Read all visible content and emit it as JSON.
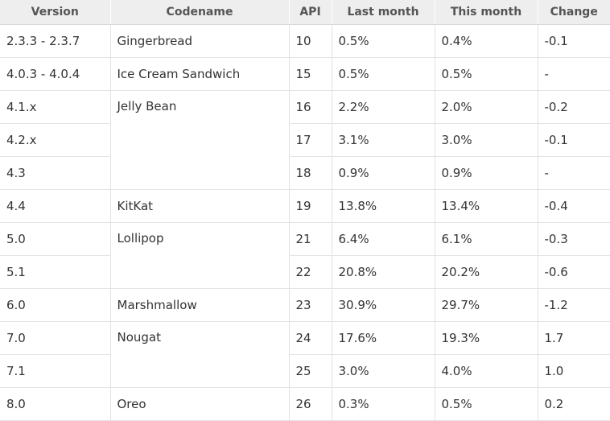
{
  "table": {
    "columns": [
      "Version",
      "Codename",
      "API",
      "Last month",
      "This month",
      "Change"
    ],
    "rows": [
      {
        "version": "2.3.3 - 2.3.7",
        "codename": "Gingerbread",
        "api": "10",
        "last_month": "0.5%",
        "this_month": "0.4%",
        "change": "-0.1"
      },
      {
        "version": "4.0.3 - 4.0.4",
        "codename": "Ice Cream Sandwich",
        "api": "15",
        "last_month": "0.5%",
        "this_month": "0.5%",
        "change": "-"
      },
      {
        "version": "4.1.x",
        "codename": "Jelly Bean",
        "api": "16",
        "last_month": "2.2%",
        "this_month": "2.0%",
        "change": "-0.2"
      },
      {
        "version": "4.2.x",
        "codename": "Jelly Bean",
        "api": "17",
        "last_month": "3.1%",
        "this_month": "3.0%",
        "change": "-0.1"
      },
      {
        "version": "4.3",
        "codename": "Jelly Bean",
        "api": "18",
        "last_month": "0.9%",
        "this_month": "0.9%",
        "change": "-"
      },
      {
        "version": "4.4",
        "codename": "KitKat",
        "api": "19",
        "last_month": "13.8%",
        "this_month": "13.4%",
        "change": "-0.4"
      },
      {
        "version": "5.0",
        "codename": "Lollipop",
        "api": "21",
        "last_month": "6.4%",
        "this_month": "6.1%",
        "change": "-0.3"
      },
      {
        "version": "5.1",
        "codename": "Lollipop",
        "api": "22",
        "last_month": "20.8%",
        "this_month": "20.2%",
        "change": "-0.6"
      },
      {
        "version": "6.0",
        "codename": "Marshmallow",
        "api": "23",
        "last_month": "30.9%",
        "this_month": "29.7%",
        "change": "-1.2"
      },
      {
        "version": "7.0",
        "codename": "Nougat",
        "api": "24",
        "last_month": "17.6%",
        "this_month": "19.3%",
        "change": "1.7"
      },
      {
        "version": "7.1",
        "codename": "Nougat",
        "api": "25",
        "last_month": "3.0%",
        "this_month": "4.0%",
        "change": "1.0"
      },
      {
        "version": "8.0",
        "codename": "Oreo",
        "api": "26",
        "last_month": "0.3%",
        "this_month": "0.5%",
        "change": "0.2"
      }
    ]
  }
}
